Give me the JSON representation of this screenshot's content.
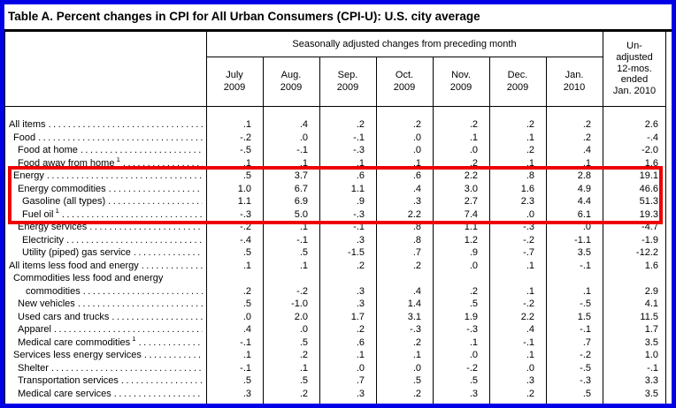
{
  "title": "Table A. Percent changes in CPI for All Urban Consumers (CPI-U): U.S. city average",
  "colors": {
    "frame_border": "#0101e6",
    "highlight_box": "#ee0000"
  },
  "table": {
    "spanner_header": "Seasonally adjusted changes from preceding month",
    "unadjusted_header": "Un-\nadjusted\n12-mos.\nended\nJan. 2010",
    "columns": [
      "July\n2009",
      "Aug.\n2009",
      "Sep.\n2009",
      "Oct.\n2009",
      "Nov.\n2009",
      "Dec.\n2009",
      "Jan.\n2010"
    ],
    "rows": [
      {
        "label": "All items",
        "indent": 0,
        "values": [
          ".1",
          ".4",
          ".2",
          ".2",
          ".2",
          ".2",
          ".2",
          "2.6"
        ]
      },
      {
        "label": "Food",
        "indent": 1,
        "values": [
          "-.2",
          ".0",
          "-.1",
          ".0",
          ".1",
          ".1",
          ".2",
          "-.4"
        ]
      },
      {
        "label": "Food at home",
        "indent": 2,
        "values": [
          "-.5",
          "-.1",
          "-.3",
          ".0",
          ".0",
          ".2",
          ".4",
          "-2.0"
        ]
      },
      {
        "label": "Food away from home",
        "footnote": "1",
        "indent": 2,
        "values": [
          ".1",
          ".1",
          ".1",
          ".1",
          ".2",
          ".1",
          ".1",
          "1.6"
        ]
      },
      {
        "label": "Energy",
        "indent": 1,
        "highlight": true,
        "values": [
          ".5",
          "3.7",
          ".6",
          ".6",
          "2.2",
          ".8",
          "2.8",
          "19.1"
        ]
      },
      {
        "label": "Energy commodities",
        "indent": 2,
        "highlight": true,
        "values": [
          "1.0",
          "6.7",
          "1.1",
          ".4",
          "3.0",
          "1.6",
          "4.9",
          "46.6"
        ]
      },
      {
        "label": "Gasoline (all types)",
        "indent": 3,
        "highlight": true,
        "values": [
          "1.1",
          "6.9",
          ".9",
          ".3",
          "2.7",
          "2.3",
          "4.4",
          "51.3"
        ]
      },
      {
        "label": "Fuel oil",
        "footnote": "1",
        "indent": 3,
        "highlight": true,
        "values": [
          "-.3",
          "5.0",
          "-.3",
          "2.2",
          "7.4",
          ".0",
          "6.1",
          "19.3"
        ]
      },
      {
        "label": "Energy services",
        "indent": 2,
        "values": [
          "-.2",
          ".1",
          "-.1",
          ".8",
          "1.1",
          "-.3",
          ".0",
          "-4.7"
        ]
      },
      {
        "label": "Electricity",
        "indent": 3,
        "values": [
          "-.4",
          "-.1",
          ".3",
          ".8",
          "1.2",
          "-.2",
          "-1.1",
          "-1.9"
        ]
      },
      {
        "label": "Utility (piped) gas service",
        "indent": 3,
        "values": [
          ".5",
          ".5",
          "-1.5",
          ".7",
          ".9",
          "-.7",
          "3.5",
          "-12.2"
        ]
      },
      {
        "label": "All items less food and energy",
        "indent": 0,
        "values": [
          ".1",
          ".1",
          ".2",
          ".2",
          ".0",
          ".1",
          "-.1",
          "1.6"
        ]
      },
      {
        "label": "Commodities less food and energy",
        "label2": "commodities",
        "indent": 1,
        "values": [
          ".2",
          "-.2",
          ".3",
          ".4",
          ".2",
          ".1",
          ".1",
          "2.9"
        ]
      },
      {
        "label": "New vehicles",
        "indent": 2,
        "values": [
          ".5",
          "-1.0",
          ".3",
          "1.4",
          ".5",
          "-.2",
          "-.5",
          "4.1"
        ]
      },
      {
        "label": "Used cars and trucks",
        "indent": 2,
        "values": [
          ".0",
          "2.0",
          "1.7",
          "3.1",
          "1.9",
          "2.2",
          "1.5",
          "11.5"
        ]
      },
      {
        "label": "Apparel",
        "indent": 2,
        "values": [
          ".4",
          ".0",
          ".2",
          "-.3",
          "-.3",
          ".4",
          "-.1",
          "1.7"
        ]
      },
      {
        "label": "Medical care commodities",
        "footnote": "1",
        "indent": 2,
        "values": [
          "-.1",
          ".5",
          ".6",
          ".2",
          ".1",
          "-.1",
          ".7",
          "3.5"
        ]
      },
      {
        "label": "Services less energy services",
        "indent": 1,
        "values": [
          ".1",
          ".2",
          ".1",
          ".1",
          ".0",
          ".1",
          "-.2",
          "1.0"
        ]
      },
      {
        "label": "Shelter",
        "indent": 2,
        "values": [
          "-.1",
          ".1",
          ".0",
          ".0",
          "-.2",
          ".0",
          "-.5",
          "-.1"
        ]
      },
      {
        "label": "Transportation services",
        "indent": 2,
        "values": [
          ".5",
          ".5",
          ".7",
          ".5",
          ".5",
          ".3",
          "-.3",
          "3.3"
        ]
      },
      {
        "label": "Medical care services",
        "indent": 2,
        "values": [
          ".3",
          ".2",
          ".3",
          ".2",
          ".3",
          ".2",
          ".5",
          "3.5"
        ]
      }
    ]
  }
}
